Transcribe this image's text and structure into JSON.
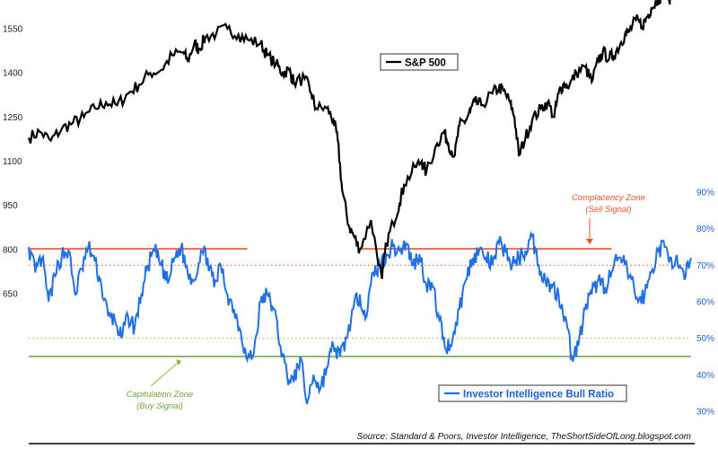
{
  "chart_data": {
    "type": "line",
    "title": "",
    "xlabel": "",
    "ylabel": "",
    "left_axis": {
      "ticks": [
        650,
        800,
        950,
        1100,
        1250,
        1400,
        1550
      ],
      "range": [
        485,
        1590
      ]
    },
    "right_axis": {
      "ticks": [
        "30%",
        "40%",
        "50%",
        "60%",
        "70%",
        "80%",
        "90%"
      ],
      "tick_values": [
        30,
        40,
        50,
        60,
        70,
        80,
        90
      ],
      "range": [
        28,
        96
      ]
    },
    "grid": false,
    "legend": [
      {
        "label": "S&P 500",
        "color": "#000000",
        "placement": "top-center"
      },
      {
        "label": "Investor Intelligence Bull Ratio",
        "color": "#1f6fe6",
        "placement": "bottom-center"
      }
    ],
    "series": [
      {
        "name": "S&P 500",
        "axis": "left",
        "color": "#000000",
        "x": [
          0,
          5,
          10,
          15,
          20,
          25,
          30,
          35,
          40,
          45,
          50,
          55,
          60,
          65,
          70,
          72,
          75,
          77,
          80,
          85,
          90,
          95,
          100,
          105,
          108,
          112,
          115,
          118,
          120,
          125,
          128,
          130,
          135,
          138,
          140,
          142,
          145,
          147,
          150,
          155,
          160,
          162,
          165,
          168,
          170,
          175,
          178,
          180,
          185,
          188,
          190,
          193,
          195,
          198,
          200,
          202,
          205
        ],
        "values": [
          1180,
          1200,
          1170,
          1210,
          1230,
          1250,
          1280,
          1300,
          1290,
          1330,
          1360,
          1400,
          1410,
          1460,
          1470,
          1440,
          1500,
          1480,
          1520,
          1535,
          1550,
          1530,
          1510,
          1500,
          1460,
          1430,
          1400,
          1410,
          1370,
          1380,
          1330,
          1280,
          1280,
          1240,
          1170,
          1000,
          880,
          850,
          800,
          900,
          700,
          820,
          890,
          960,
          1020,
          1080,
          1100,
          1060,
          1160,
          1200,
          1160,
          1120,
          1220,
          1240,
          1270,
          1300,
          1290
        ]
      }
    ],
    "series_extra": [
      {
        "name": "S&P 500",
        "x": [
          210,
          213,
          215,
          218,
          220,
          222,
          225,
          228,
          232,
          235,
          238,
          240,
          242,
          245,
          248,
          252,
          255,
          258,
          260,
          263,
          265,
          268,
          270,
          272,
          275,
          278,
          280,
          282,
          285,
          288,
          290,
          292,
          295,
          298,
          300
        ],
        "values": [
          1330,
          1350,
          1340,
          1300,
          1250,
          1120,
          1180,
          1240,
          1280,
          1300,
          1250,
          1330,
          1360,
          1360,
          1400,
          1420,
          1370,
          1440,
          1470,
          1450,
          1460,
          1500,
          1530,
          1540,
          1580,
          1560,
          1590,
          1620,
          1650,
          1680,
          1650,
          1680,
          1700,
          1720,
          1700
        ]
      }
    ],
    "ratio": {
      "name": "Investor Intelligence Bull Ratio",
      "axis": "right",
      "color": "#1f6fe6",
      "x": [
        0,
        3,
        6,
        9,
        12,
        15,
        18,
        21,
        24,
        27,
        30,
        33,
        36,
        39,
        42,
        45,
        48,
        51,
        54,
        57,
        60,
        63,
        66,
        69,
        72,
        75,
        78,
        81,
        84,
        87,
        90,
        93,
        96,
        99,
        102,
        105,
        108,
        111,
        114,
        117,
        120,
        123,
        126,
        129,
        132,
        135,
        138,
        141,
        144,
        147,
        150,
        153,
        156,
        159,
        162,
        165,
        168,
        171,
        174,
        177,
        180,
        183,
        186,
        189,
        192,
        195,
        198,
        201,
        204,
        207,
        210,
        213,
        216,
        219,
        222,
        225,
        228,
        231,
        234,
        237,
        240,
        243,
        246,
        249,
        252,
        255,
        258,
        261,
        264,
        267,
        270,
        273,
        276,
        279,
        282,
        285,
        288,
        291,
        294,
        297,
        300
      ],
      "values": [
        75,
        68,
        72,
        60,
        67,
        73,
        74,
        62,
        69,
        75,
        71,
        64,
        56,
        55,
        50,
        56,
        53,
        62,
        70,
        74,
        70,
        65,
        72,
        75,
        68,
        66,
        74,
        72,
        64,
        70,
        62,
        58,
        52,
        44,
        46,
        60,
        62,
        58,
        48,
        40,
        38,
        45,
        32,
        40,
        36,
        42,
        48,
        45,
        50,
        58,
        62,
        56,
        68,
        70,
        73,
        75,
        74,
        76,
        70,
        73,
        65,
        64,
        55,
        47,
        50,
        58,
        66,
        72,
        74,
        72,
        70,
        76,
        74,
        70,
        72,
        74,
        78,
        70,
        66,
        64,
        62,
        56,
        45,
        48,
        58,
        62,
        66,
        64,
        68,
        72,
        70,
        66,
        60,
        62,
        68,
        74,
        75,
        72,
        70,
        66,
        72
      ]
    },
    "reference_lines": [
      {
        "name": "complacency-line",
        "value": 74.5,
        "axis": "right",
        "color": "#e8532a",
        "style": "solid",
        "segments": [
          [
            0,
            0.33
          ],
          [
            0.5,
            0.88
          ]
        ]
      },
      {
        "name": "sell-level-dotted",
        "value": 70,
        "axis": "right",
        "color": "#e8532a",
        "style": "dotted"
      },
      {
        "name": "buy-level-dotted",
        "value": 50,
        "axis": "right",
        "color": "#8db83a",
        "style": "dotted"
      },
      {
        "name": "capitulation-line",
        "value": 45,
        "axis": "right",
        "color": "#6fa23c",
        "style": "solid"
      }
    ],
    "annotations": [
      {
        "title": "Complacency Zone",
        "subtitle": "(Sell Signal)",
        "color": "#e8532a"
      },
      {
        "title": "Capitulation Zone",
        "subtitle": "(Buy Signal)",
        "color": "#6fa23c"
      }
    ],
    "source": "Source: Standard & Poors, Investor Intelligence, TheShortSideOfLong.blogspot.com"
  }
}
